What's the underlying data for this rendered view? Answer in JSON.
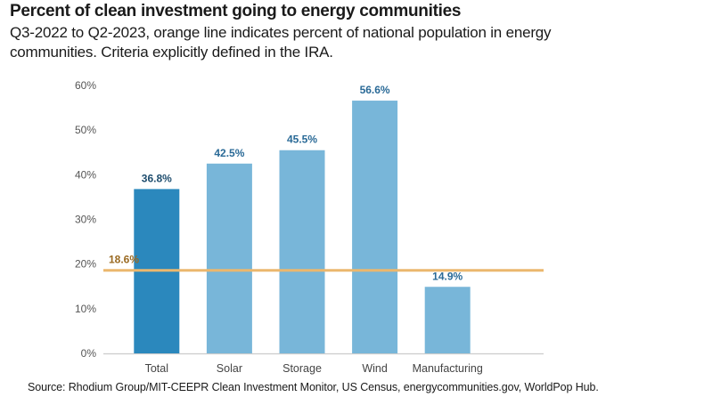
{
  "header": {
    "title": "Percent of clean investment going to energy communities",
    "subtitle": "Q3-2022 to Q2-2023, orange line indicates percent of national population in energy communities. Criteria explicitly defined in the IRA."
  },
  "footer": {
    "source": "Source: Rhodium Group/MIT-CEEPR Clean Investment Monitor, US Census, energycommunities.gov, WorldPop Hub."
  },
  "colors": {
    "total_bar": "#2b88bd",
    "other_bars": "#78b6d9",
    "reference_line": "#ebb76e",
    "reference_label": "#9a6a22",
    "value_label_total": "#1e4d6e",
    "value_label_other": "#2a6a97",
    "axis": "#cccccc"
  },
  "chart_data": {
    "type": "bar",
    "title": "Percent of clean investment going to energy communities",
    "subtitle": "Q3-2022 to Q2-2023, orange line indicates percent of national population in energy communities. Criteria explicitly defined in the IRA.",
    "categories": [
      "Total",
      "Solar",
      "Storage",
      "Wind",
      "Manufacturing"
    ],
    "values": [
      36.8,
      42.5,
      45.5,
      56.6,
      14.9
    ],
    "value_labels": [
      "36.8%",
      "42.5%",
      "45.5%",
      "56.6%",
      "14.9%"
    ],
    "xlabel": "",
    "ylabel": "",
    "ylim": [
      0,
      60
    ],
    "yticks": [
      0,
      10,
      20,
      30,
      40,
      50,
      60
    ],
    "ytick_labels": [
      "0%",
      "10%",
      "20%",
      "30%",
      "40%",
      "50%",
      "60%"
    ],
    "grid": false,
    "reference_line": {
      "value": 18.6,
      "label": "18.6%",
      "meaning": "percent of national population in energy communities"
    },
    "annotations": [
      "18.6%"
    ]
  }
}
